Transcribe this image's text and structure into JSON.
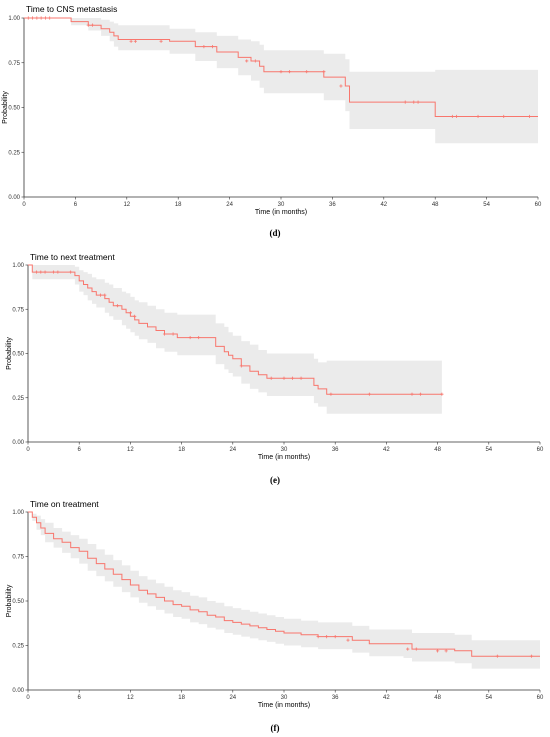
{
  "colors": {
    "curve": "#f8766d",
    "band": "#ebebeb",
    "axis": "#333333"
  },
  "chart_data": [
    {
      "type": "line",
      "title": "Time to CNS metastasis",
      "xlabel": "Time (in months)",
      "ylabel": "Probability",
      "caption": "(d)",
      "xlim": [
        0,
        60
      ],
      "ylim": [
        0,
        1
      ],
      "xticks": [
        "0",
        "6",
        "12",
        "18",
        "24",
        "30",
        "36",
        "42",
        "48",
        "54",
        "60"
      ],
      "yticks": [
        "0.00",
        "0.25",
        "0.50",
        "0.75",
        "1.00"
      ],
      "grid": false,
      "series": [
        {
          "x": [
            0,
            5.5,
            7.5,
            9,
            10,
            10.5,
            11,
            17,
            20,
            22.5,
            25,
            26.5,
            27.5,
            28,
            35,
            37.5,
            38,
            48,
            60
          ],
          "y": [
            1.0,
            0.98,
            0.96,
            0.94,
            0.92,
            0.9,
            0.88,
            0.87,
            0.84,
            0.81,
            0.78,
            0.76,
            0.73,
            0.7,
            0.67,
            0.62,
            0.53,
            0.45,
            0.45
          ],
          "lower": [
            1.0,
            0.96,
            0.93,
            0.9,
            0.87,
            0.84,
            0.82,
            0.8,
            0.76,
            0.72,
            0.68,
            0.65,
            0.61,
            0.58,
            0.54,
            0.48,
            0.38,
            0.3,
            0.3
          ],
          "upper": [
            1.0,
            1.0,
            1.0,
            0.99,
            0.98,
            0.97,
            0.96,
            0.94,
            0.92,
            0.9,
            0.88,
            0.87,
            0.85,
            0.82,
            0.8,
            0.77,
            0.7,
            0.71,
            0.71
          ],
          "censored": [
            [
              0.5,
              1
            ],
            [
              1,
              1
            ],
            [
              1.5,
              1
            ],
            [
              2,
              1
            ],
            [
              2.5,
              1
            ],
            [
              3,
              1
            ],
            [
              7.5,
              0.96
            ],
            [
              8,
              0.96
            ],
            [
              12.5,
              0.87
            ],
            [
              13,
              0.87
            ],
            [
              16,
              0.87
            ],
            [
              21,
              0.84
            ],
            [
              22,
              0.84
            ],
            [
              26,
              0.76
            ],
            [
              27,
              0.76
            ],
            [
              30,
              0.7
            ],
            [
              31,
              0.7
            ],
            [
              33,
              0.7
            ],
            [
              35,
              0.7
            ],
            [
              37,
              0.62
            ],
            [
              44.5,
              0.53
            ],
            [
              45.5,
              0.53
            ],
            [
              46,
              0.53
            ],
            [
              50,
              0.45
            ],
            [
              50.5,
              0.45
            ],
            [
              53,
              0.45
            ],
            [
              56,
              0.45
            ],
            [
              59,
              0.45
            ]
          ]
        }
      ]
    },
    {
      "type": "line",
      "title": "Time to next treatment",
      "xlabel": "Time (in months)",
      "ylabel": "Probability",
      "caption": "(e)",
      "xlim": [
        0,
        60
      ],
      "ylim": [
        0,
        1
      ],
      "xticks": [
        "0",
        "6",
        "12",
        "18",
        "24",
        "30",
        "36",
        "42",
        "48",
        "54",
        "60"
      ],
      "yticks": [
        "0.00",
        "0.25",
        "0.50",
        "0.75",
        "1.00"
      ],
      "grid": false,
      "series": [
        {
          "x": [
            0,
            0.5,
            5.5,
            6,
            6.5,
            7,
            7.5,
            8,
            9,
            9.5,
            10,
            11,
            11.5,
            12,
            12.5,
            13,
            14,
            15,
            16,
            17.5,
            22,
            23,
            23.5,
            24,
            25,
            26,
            27,
            28,
            33.5,
            34,
            35,
            48.5
          ],
          "y": [
            1.0,
            0.96,
            0.94,
            0.91,
            0.89,
            0.87,
            0.85,
            0.83,
            0.81,
            0.79,
            0.77,
            0.75,
            0.73,
            0.71,
            0.69,
            0.67,
            0.65,
            0.63,
            0.61,
            0.59,
            0.54,
            0.51,
            0.49,
            0.47,
            0.43,
            0.4,
            0.38,
            0.36,
            0.32,
            0.3,
            0.27,
            0.27
          ],
          "lower": [
            1.0,
            0.92,
            0.89,
            0.85,
            0.83,
            0.8,
            0.78,
            0.76,
            0.73,
            0.71,
            0.69,
            0.66,
            0.64,
            0.62,
            0.6,
            0.58,
            0.56,
            0.53,
            0.51,
            0.49,
            0.44,
            0.41,
            0.39,
            0.37,
            0.33,
            0.3,
            0.28,
            0.26,
            0.22,
            0.2,
            0.16,
            0.16
          ],
          "upper": [
            1.0,
            1.0,
            0.99,
            0.97,
            0.96,
            0.95,
            0.93,
            0.92,
            0.9,
            0.89,
            0.87,
            0.85,
            0.84,
            0.82,
            0.8,
            0.79,
            0.77,
            0.75,
            0.73,
            0.72,
            0.67,
            0.65,
            0.62,
            0.6,
            0.57,
            0.55,
            0.52,
            0.5,
            0.47,
            0.45,
            0.46,
            0.46
          ]
        }
      ],
      "censored": [
        [
          1,
          0.96
        ],
        [
          1.5,
          0.96
        ],
        [
          2,
          0.96
        ],
        [
          3,
          0.96
        ],
        [
          3.5,
          0.96
        ],
        [
          5,
          0.96
        ],
        [
          8.5,
          0.83
        ],
        [
          9,
          0.83
        ],
        [
          10.5,
          0.77
        ],
        [
          12,
          0.73
        ],
        [
          12.5,
          0.71
        ],
        [
          16,
          0.61
        ],
        [
          17,
          0.61
        ],
        [
          19,
          0.59
        ],
        [
          20,
          0.59
        ],
        [
          25,
          0.43
        ],
        [
          28.5,
          0.36
        ],
        [
          30,
          0.36
        ],
        [
          31,
          0.36
        ],
        [
          32,
          0.36
        ],
        [
          35.5,
          0.27
        ],
        [
          40,
          0.27
        ],
        [
          45,
          0.27
        ],
        [
          46,
          0.27
        ],
        [
          48.5,
          0.27
        ]
      ]
    },
    {
      "type": "line",
      "title": "Time on treatment",
      "xlabel": "Time (in months)",
      "ylabel": "Probability",
      "caption": "(f)",
      "xlim": [
        0,
        60
      ],
      "ylim": [
        0,
        1
      ],
      "xticks": [
        "0",
        "6",
        "12",
        "18",
        "24",
        "30",
        "36",
        "42",
        "48",
        "54",
        "60"
      ],
      "yticks": [
        "0.00",
        "0.25",
        "0.50",
        "0.75",
        "1.00"
      ],
      "grid": false,
      "series": [
        {
          "x": [
            0,
            0.5,
            1,
            1.5,
            2,
            3,
            4,
            5,
            6,
            7,
            8,
            9,
            10,
            11,
            12,
            13,
            14,
            15,
            16,
            17,
            18,
            19,
            20,
            21,
            22,
            23,
            24,
            25,
            26,
            27,
            28,
            29,
            30,
            32,
            34,
            36,
            38,
            40,
            44,
            45,
            50,
            52,
            60
          ],
          "y": [
            1.0,
            0.97,
            0.94,
            0.91,
            0.88,
            0.85,
            0.83,
            0.8,
            0.78,
            0.74,
            0.71,
            0.68,
            0.65,
            0.62,
            0.59,
            0.56,
            0.54,
            0.52,
            0.5,
            0.48,
            0.47,
            0.45,
            0.44,
            0.42,
            0.41,
            0.39,
            0.38,
            0.37,
            0.36,
            0.35,
            0.34,
            0.33,
            0.32,
            0.31,
            0.3,
            0.3,
            0.28,
            0.26,
            0.26,
            0.23,
            0.22,
            0.19,
            0.19
          ],
          "lower": [
            1.0,
            0.95,
            0.9,
            0.87,
            0.83,
            0.8,
            0.77,
            0.74,
            0.71,
            0.67,
            0.64,
            0.61,
            0.58,
            0.55,
            0.52,
            0.49,
            0.47,
            0.45,
            0.43,
            0.41,
            0.4,
            0.38,
            0.37,
            0.35,
            0.34,
            0.32,
            0.31,
            0.3,
            0.29,
            0.28,
            0.27,
            0.26,
            0.25,
            0.24,
            0.23,
            0.23,
            0.21,
            0.19,
            0.18,
            0.16,
            0.15,
            0.12,
            0.12
          ],
          "upper": [
            1.0,
            0.99,
            0.98,
            0.96,
            0.94,
            0.91,
            0.89,
            0.87,
            0.85,
            0.82,
            0.79,
            0.76,
            0.73,
            0.7,
            0.67,
            0.64,
            0.62,
            0.6,
            0.58,
            0.56,
            0.55,
            0.53,
            0.52,
            0.5,
            0.49,
            0.47,
            0.46,
            0.45,
            0.44,
            0.43,
            0.42,
            0.41,
            0.4,
            0.39,
            0.38,
            0.38,
            0.36,
            0.34,
            0.34,
            0.32,
            0.31,
            0.28,
            0.28
          ]
        }
      ],
      "censored": [
        [
          34,
          0.3
        ],
        [
          35,
          0.3
        ],
        [
          36,
          0.3
        ],
        [
          37.5,
          0.28
        ],
        [
          44.5,
          0.23
        ],
        [
          45.5,
          0.23
        ],
        [
          48,
          0.22
        ],
        [
          49,
          0.22
        ],
        [
          55,
          0.19
        ],
        [
          59,
          0.19
        ]
      ]
    }
  ]
}
